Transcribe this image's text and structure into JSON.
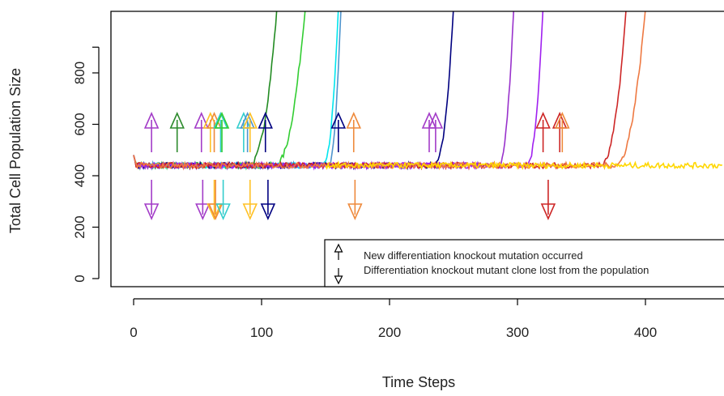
{
  "chart_data": {
    "type": "line",
    "xlabel": "Time Steps",
    "ylabel": "Total Cell Population Size",
    "xlim": [
      -20,
      460
    ],
    "ylim": [
      -40,
      1000
    ],
    "x_ticks": [
      0,
      100,
      200,
      300,
      400
    ],
    "y_ticks": [
      0,
      200,
      400,
      600,
      800
    ],
    "baseline": 440,
    "series": [
      {
        "color": "#228B22",
        "start": 90,
        "end": 112
      },
      {
        "color": "#32CD32",
        "start": 110,
        "end": 134
      },
      {
        "color": "#00E5EE",
        "start": 148,
        "end": 160
      },
      {
        "color": "#4F94CD",
        "start": 152,
        "end": 162
      },
      {
        "color": "#000080",
        "start": 235,
        "end": 250
      },
      {
        "color": "#9932CC",
        "start": 285,
        "end": 297
      },
      {
        "color": "#A020F0",
        "start": 307,
        "end": 320
      },
      {
        "color": "#CD2626",
        "start": 365,
        "end": 385
      },
      {
        "color": "#EE7942",
        "start": 376,
        "end": 400
      },
      {
        "color": "#FFD700",
        "start": null,
        "end": null
      }
    ],
    "mutation_arrows": [
      {
        "x": 14,
        "color": "#A33CC8"
      },
      {
        "x": 34,
        "color": "#2E8B2E"
      },
      {
        "x": 53,
        "color": "#A33CC8"
      },
      {
        "x": 60,
        "color": "#FFC125"
      },
      {
        "x": 63,
        "color": "#EE8A3C"
      },
      {
        "x": 68,
        "color": "#34CDCD"
      },
      {
        "x": 69,
        "color": "#32CD32"
      },
      {
        "x": 86,
        "color": "#34CDCD"
      },
      {
        "x": 89,
        "color": "#4F94CD"
      },
      {
        "x": 91,
        "color": "#FFC125"
      },
      {
        "x": 103,
        "color": "#000080"
      },
      {
        "x": 160,
        "color": "#000080"
      },
      {
        "x": 172,
        "color": "#EE8A3C"
      },
      {
        "x": 231,
        "color": "#A33CC8"
      },
      {
        "x": 236,
        "color": "#A33CC8"
      },
      {
        "x": 320,
        "color": "#CD2626"
      },
      {
        "x": 333,
        "color": "#CD2626"
      },
      {
        "x": 335,
        "color": "#EE8A3C"
      }
    ],
    "loss_arrows": [
      {
        "x": 14,
        "color": "#A33CC8"
      },
      {
        "x": 54,
        "color": "#A33CC8"
      },
      {
        "x": 63,
        "color": "#FFC125"
      },
      {
        "x": 64,
        "color": "#EE8A3C"
      },
      {
        "x": 70,
        "color": "#34CDCD"
      },
      {
        "x": 91,
        "color": "#FFC125"
      },
      {
        "x": 105,
        "color": "#000080"
      },
      {
        "x": 173,
        "color": "#EE8A3C"
      },
      {
        "x": 324,
        "color": "#CD2626"
      }
    ],
    "legend": {
      "position": "bottom-right",
      "items": [
        {
          "symbol": "up-arrow",
          "label": "New differentiation knockout mutation occurred"
        },
        {
          "symbol": "down-arrow",
          "label": "Differentiation knockout mutant clone lost from the population"
        }
      ]
    }
  }
}
